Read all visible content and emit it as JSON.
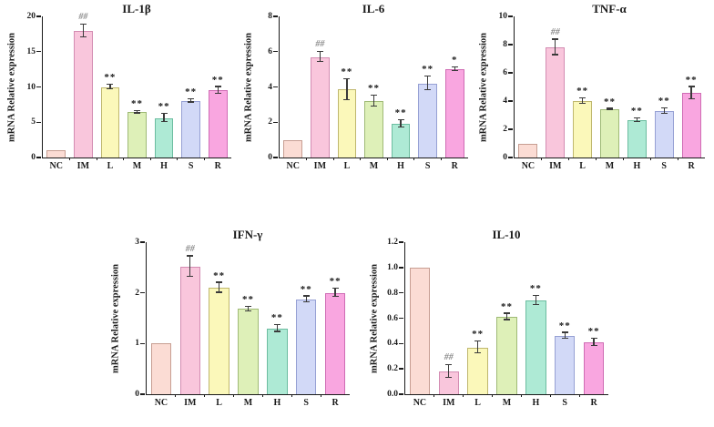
{
  "figure": {
    "background": "#ffffff",
    "axis_color": "#1a1a1a",
    "text_color": "#1a1a1a",
    "error_bar_color": "#3a3a3a",
    "hash_marker_color": "#8c8c8c",
    "bar_fills": [
      "#fbdcd4",
      "#f9c6dc",
      "#fbf8ba",
      "#def0b8",
      "#aeead5",
      "#d2d9f7",
      "#f9a6e0"
    ],
    "bar_borders": [
      "#c79e92",
      "#d38cb2",
      "#bfb76e",
      "#9fba76",
      "#6cbda0",
      "#96a0d4",
      "#cf6cb4"
    ]
  },
  "chart_data": [
    {
      "type": "bar",
      "title": "IL-1β",
      "ylabel": "mRNA Relative expression",
      "xlabel": "",
      "categories": [
        "NC",
        "IM",
        "L",
        "M",
        "H",
        "S",
        "R"
      ],
      "values": [
        1.0,
        17.9,
        10.0,
        6.4,
        5.6,
        8.0,
        9.5
      ],
      "errors": [
        0,
        0.9,
        0.35,
        0.15,
        0.6,
        0.2,
        0.5
      ],
      "sig": [
        "",
        "##",
        "**",
        "**",
        "**",
        "**",
        "**"
      ],
      "ylim": [
        0,
        20
      ],
      "yticks": [
        0,
        5,
        10,
        15,
        20
      ],
      "ytick_labels": [
        "0",
        "5",
        "10",
        "15",
        "20"
      ],
      "grid": false,
      "legend": null
    },
    {
      "type": "bar",
      "title": "IL-6",
      "ylabel": "mRNA Relative expression",
      "xlabel": "",
      "categories": [
        "NC",
        "IM",
        "L",
        "M",
        "H",
        "S",
        "R"
      ],
      "values": [
        1.0,
        5.7,
        3.85,
        3.2,
        1.9,
        4.2,
        5.0
      ],
      "errors": [
        0,
        0.3,
        0.6,
        0.3,
        0.2,
        0.4,
        0.12
      ],
      "sig": [
        "",
        "##",
        "**",
        "**",
        "**",
        "**",
        "*"
      ],
      "ylim": [
        0,
        8
      ],
      "yticks": [
        0,
        2,
        4,
        6,
        8
      ],
      "ytick_labels": [
        "0",
        "2",
        "4",
        "6",
        "8"
      ],
      "grid": false,
      "legend": null
    },
    {
      "type": "bar",
      "title": "TNF-α",
      "ylabel": "mRNA Relative expression",
      "xlabel": "",
      "categories": [
        "NC",
        "IM",
        "L",
        "M",
        "H",
        "S",
        "R"
      ],
      "values": [
        1.0,
        7.8,
        4.0,
        3.4,
        2.65,
        3.3,
        4.55
      ],
      "errors": [
        0,
        0.55,
        0.2,
        0.05,
        0.12,
        0.2,
        0.45
      ],
      "sig": [
        "",
        "##",
        "**",
        "**",
        "**",
        "**",
        "**"
      ],
      "ylim": [
        0,
        10
      ],
      "yticks": [
        0,
        2,
        4,
        6,
        8,
        10
      ],
      "ytick_labels": [
        "0",
        "2",
        "4",
        "6",
        "8",
        "10"
      ],
      "grid": false,
      "legend": null
    },
    {
      "type": "bar",
      "title": "IFN-γ",
      "ylabel": "mRNA Relative expression",
      "xlabel": "",
      "categories": [
        "NC",
        "IM",
        "L",
        "M",
        "H",
        "S",
        "R"
      ],
      "values": [
        1.0,
        2.52,
        2.1,
        1.68,
        1.3,
        1.87,
        2.0
      ],
      "errors": [
        0,
        0.2,
        0.1,
        0.04,
        0.07,
        0.06,
        0.08
      ],
      "sig": [
        "",
        "##",
        "**",
        "**",
        "**",
        "**",
        "**"
      ],
      "ylim": [
        0,
        3
      ],
      "yticks": [
        0,
        1,
        2,
        3
      ],
      "ytick_labels": [
        "0",
        "1",
        "2",
        "3"
      ],
      "grid": false,
      "legend": null
    },
    {
      "type": "bar",
      "title": "IL-10",
      "ylabel": "mRNA Relative expression",
      "xlabel": "",
      "categories": [
        "NC",
        "IM",
        "L",
        "M",
        "H",
        "S",
        "R"
      ],
      "values": [
        1.0,
        0.18,
        0.37,
        0.61,
        0.74,
        0.46,
        0.41
      ],
      "errors": [
        0,
        0.05,
        0.045,
        0.025,
        0.035,
        0.025,
        0.03
      ],
      "sig": [
        "",
        "##",
        "**",
        "**",
        "**",
        "**",
        "**"
      ],
      "ylim": [
        0,
        1.2
      ],
      "yticks": [
        0,
        0.2,
        0.4,
        0.6,
        0.8,
        1.0,
        1.2
      ],
      "ytick_labels": [
        "0.0",
        "0.2",
        "0.4",
        "0.6",
        "0.8",
        "1.0",
        "1.2"
      ],
      "grid": false,
      "legend": null
    }
  ]
}
